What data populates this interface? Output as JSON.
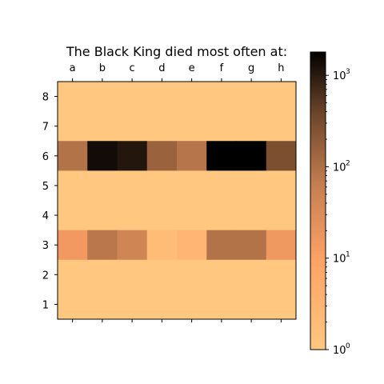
{
  "chart_data": {
    "type": "heatmap",
    "title": "The Black King died most often at:",
    "x_tick_labels": [
      "a",
      "b",
      "c",
      "d",
      "e",
      "f",
      "g",
      "h"
    ],
    "y_tick_labels": [
      "8",
      "7",
      "6",
      "5",
      "4",
      "3",
      "2",
      "1"
    ],
    "values": [
      [
        1,
        1,
        1,
        1,
        1,
        1,
        1,
        1
      ],
      [
        1,
        1,
        1,
        1,
        1,
        1,
        1,
        1
      ],
      [
        90,
        1400,
        1100,
        150,
        85,
        1800,
        2000,
        280
      ],
      [
        1,
        1,
        1,
        1,
        1,
        1,
        1,
        1
      ],
      [
        1,
        1,
        1,
        1,
        1,
        1,
        1,
        1
      ],
      [
        15,
        80,
        45,
        2,
        3,
        90,
        90,
        16
      ],
      [
        1,
        1,
        1,
        1,
        1,
        1,
        1,
        1
      ],
      [
        1,
        1,
        1,
        1,
        1,
        1,
        1,
        1
      ]
    ],
    "colorscale": "copper_r",
    "color_scale_type": "log",
    "color_range": [
      1,
      1800
    ],
    "colorbar_ticks": [
      {
        "base": "10",
        "exp": "0"
      },
      {
        "base": "10",
        "exp": "1"
      },
      {
        "base": "10",
        "exp": "2"
      },
      {
        "base": "10",
        "exp": "3"
      }
    ],
    "x_ticks_position": "top and bottom"
  }
}
